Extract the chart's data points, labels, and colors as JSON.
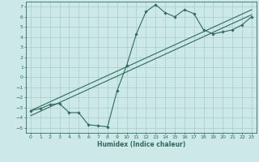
{
  "title": "",
  "xlabel": "Humidex (Indice chaleur)",
  "x_data": [
    0,
    1,
    2,
    3,
    4,
    5,
    6,
    7,
    8,
    9,
    10,
    11,
    12,
    13,
    14,
    15,
    16,
    17,
    18,
    19,
    20,
    21,
    22,
    23
  ],
  "y_data": [
    -3.3,
    -3.1,
    -2.7,
    -2.6,
    -3.5,
    -3.5,
    -4.7,
    -4.8,
    -4.9,
    -1.3,
    1.2,
    4.3,
    6.5,
    7.2,
    6.4,
    6.0,
    6.7,
    6.3,
    4.7,
    4.3,
    4.5,
    4.7,
    5.2,
    6.0
  ],
  "line1_x": [
    0,
    23
  ],
  "line1_y": [
    -3.8,
    6.2
  ],
  "line2_x": [
    0,
    23
  ],
  "line2_y": [
    -3.3,
    6.7
  ],
  "ylim": [
    -5.5,
    7.5
  ],
  "xlim": [
    -0.5,
    23.5
  ],
  "yticks": [
    -5,
    -4,
    -3,
    -2,
    -1,
    0,
    1,
    2,
    3,
    4,
    5,
    6,
    7
  ],
  "xticks": [
    0,
    1,
    2,
    3,
    4,
    5,
    6,
    7,
    8,
    9,
    10,
    11,
    12,
    13,
    14,
    15,
    16,
    17,
    18,
    19,
    20,
    21,
    22,
    23
  ],
  "line_color": "#2e6b5e",
  "bg_color": "#cde8e8",
  "grid_color": "#a8cccc",
  "tick_fontsize": 4.5,
  "xlabel_fontsize": 5.5
}
